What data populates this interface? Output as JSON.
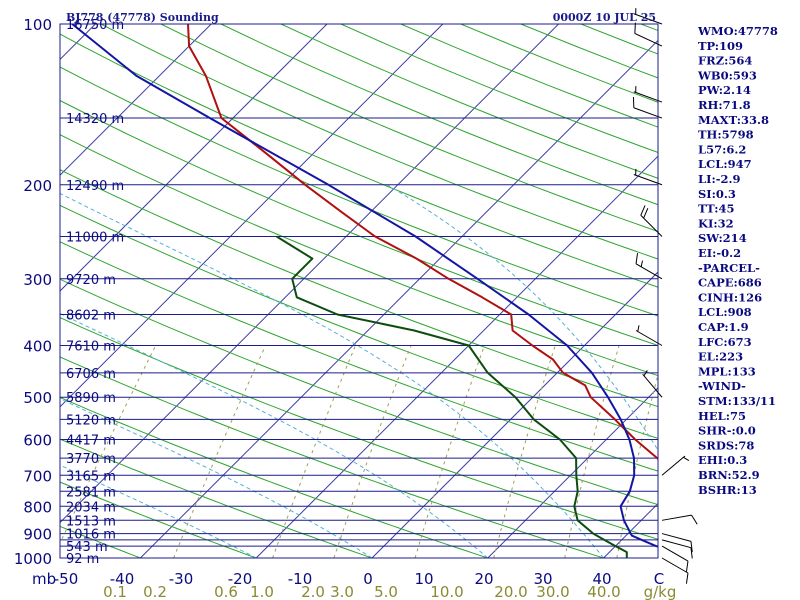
{
  "header": {
    "station": "BJ778 (47778) Sounding",
    "time": "0000Z 10 JUL 25"
  },
  "indices": [
    "WMO:47778",
    "TP:109",
    "FRZ:564",
    "WB0:593",
    "PW:2.14",
    "RH:71.8",
    "MAXT:33.8",
    "TH:5798",
    "L57:6.2",
    "LCL:947",
    "LI:-2.9",
    "SI:0.3",
    "TT:45",
    "KI:32",
    "SW:214",
    "EI:-0.2",
    "-PARCEL-",
    "CAPE:686",
    "CINH:126",
    "LCL:908",
    "CAP:1.9",
    "LFC:673",
    "EL:223",
    "MPL:133",
    "-WIND-",
    "STM:133/11",
    "HEL:75",
    "SHR-:0.0",
    "SRDS:78",
    "EHI:0.3",
    "BRN:52.9",
    "BSHR:13"
  ],
  "colors": {
    "isobar": "#1c1c8c",
    "isotherm": "#3a3aa8",
    "dry_adiabat": "#2fa52f",
    "moist_adiabat": "#55b0d8",
    "mixing_ratio": "#a0a050",
    "temperature": "#b01010",
    "dewpoint": "#0d4d0d",
    "parcel": "#1515a5",
    "text": "#0a0a80"
  },
  "chart_data": {
    "type": "line",
    "diagram": "skew-t log-p",
    "pressure_axis": {
      "unit": "mb",
      "ticks": [
        100,
        200,
        300,
        400,
        500,
        600,
        700,
        800,
        900,
        1000
      ],
      "range": [
        100,
        1000
      ],
      "scale": "log"
    },
    "temperature_axis": {
      "unit": "C",
      "tick_labels": [
        "-50",
        "-40",
        "-30",
        "-20",
        "-10",
        "0",
        "10",
        "20",
        "30",
        "40"
      ],
      "range": [
        -50,
        50
      ]
    },
    "mixing_ratio_axis": {
      "unit": "g/kg",
      "tick_labels": [
        "0.1",
        "0.2",
        "0.6",
        "1.0",
        "2.0",
        "3.0",
        "5.0",
        "10.0",
        "20.0",
        "30.0",
        "40.0"
      ]
    },
    "height_labels": [
      {
        "p": 100,
        "label": "16750 m"
      },
      {
        "p": 150,
        "label": "14320 m"
      },
      {
        "p": 200,
        "label": "12490 m"
      },
      {
        "p": 250,
        "label": "11000 m"
      },
      {
        "p": 300,
        "label": "9720 m"
      },
      {
        "p": 350,
        "label": "8602 m"
      },
      {
        "p": 400,
        "label": "7610 m"
      },
      {
        "p": 450,
        "label": "6706 m"
      },
      {
        "p": 500,
        "label": "5890 m"
      },
      {
        "p": 550,
        "label": "5120 m"
      },
      {
        "p": 600,
        "label": "4417 m"
      },
      {
        "p": 650,
        "label": "3770 m"
      },
      {
        "p": 700,
        "label": "3165 m"
      },
      {
        "p": 750,
        "label": "2581 m"
      },
      {
        "p": 800,
        "label": "2034 m"
      },
      {
        "p": 850,
        "label": "1513 m"
      },
      {
        "p": 900,
        "label": "1016 m"
      },
      {
        "p": 950,
        "label": "543 m"
      },
      {
        "p": 1000,
        "label": "92 m"
      }
    ],
    "series": [
      {
        "name": "T",
        "points": [
          [
            1000,
            26.5
          ],
          [
            975,
            26
          ],
          [
            925,
            24.5
          ],
          [
            900,
            24.5
          ],
          [
            850,
            24
          ],
          [
            800,
            23
          ],
          [
            750,
            21
          ],
          [
            700,
            19
          ],
          [
            650,
            16
          ],
          [
            600,
            12.5
          ],
          [
            550,
            9
          ],
          [
            500,
            5
          ],
          [
            475,
            3.5
          ],
          [
            450,
            0.5
          ],
          [
            425,
            -1.5
          ],
          [
            400,
            -4.5
          ],
          [
            375,
            -7.5
          ],
          [
            350,
            -9
          ],
          [
            325,
            -13
          ],
          [
            300,
            -17.5
          ],
          [
            275,
            -22
          ],
          [
            250,
            -27.5
          ],
          [
            225,
            -32.5
          ],
          [
            200,
            -38
          ],
          [
            175,
            -44
          ],
          [
            150,
            -51
          ],
          [
            125,
            -56
          ],
          [
            110,
            -60
          ],
          [
            100,
            -62
          ]
        ]
      },
      {
        "name": "Td",
        "points": [
          [
            1000,
            22
          ],
          [
            975,
            21.5
          ],
          [
            950,
            20
          ],
          [
            925,
            18.5
          ],
          [
            900,
            17
          ],
          [
            850,
            14.5
          ],
          [
            800,
            13
          ],
          [
            750,
            12
          ],
          [
            700,
            10.5
          ],
          [
            650,
            9
          ],
          [
            600,
            6
          ],
          [
            550,
            2
          ],
          [
            500,
            -1.5
          ],
          [
            450,
            -6
          ],
          [
            400,
            -10
          ],
          [
            375,
            -16
          ],
          [
            350,
            -24
          ],
          [
            325,
            -29
          ],
          [
            300,
            -31
          ],
          [
            275,
            -31
          ],
          [
            250,
            -36
          ]
        ]
      },
      {
        "name": "Parcel",
        "points": [
          [
            1000,
            30.5
          ],
          [
            975,
            27
          ],
          [
            950,
            23.5
          ],
          [
            908,
            20.5
          ],
          [
            850,
            18.5
          ],
          [
            800,
            17
          ],
          [
            750,
            16.5
          ],
          [
            700,
            15.5
          ],
          [
            650,
            14
          ],
          [
            600,
            12
          ],
          [
            550,
            9.5
          ],
          [
            500,
            6.5
          ],
          [
            450,
            3
          ],
          [
            400,
            -1.5
          ],
          [
            350,
            -7.5
          ],
          [
            300,
            -15
          ],
          [
            250,
            -24
          ],
          [
            200,
            -36
          ],
          [
            150,
            -52
          ],
          [
            125,
            -62
          ],
          [
            100,
            -72
          ]
        ]
      }
    ],
    "wind_barbs": [
      {
        "p": 1000,
        "dir": 120,
        "spd": 10
      },
      {
        "p": 950,
        "dir": 120,
        "spd": 10
      },
      {
        "p": 925,
        "dir": 105,
        "spd": 10
      },
      {
        "p": 900,
        "dir": 105,
        "spd": 10
      },
      {
        "p": 850,
        "dir": 80,
        "spd": 10
      },
      {
        "p": 700,
        "dir": 50,
        "spd": 5
      },
      {
        "p": 500,
        "dir": 320,
        "spd": 5
      },
      {
        "p": 400,
        "dir": 300,
        "spd": 5
      },
      {
        "p": 300,
        "dir": 300,
        "spd": 15
      },
      {
        "p": 250,
        "dir": 315,
        "spd": 20
      },
      {
        "p": 200,
        "dir": 290,
        "spd": 5
      },
      {
        "p": 150,
        "dir": 290,
        "spd": 10
      },
      {
        "p": 140,
        "dir": 290,
        "spd": 5
      },
      {
        "p": 110,
        "dir": 295,
        "spd": 10
      },
      {
        "p": 100,
        "dir": 290,
        "spd": 5
      }
    ]
  }
}
